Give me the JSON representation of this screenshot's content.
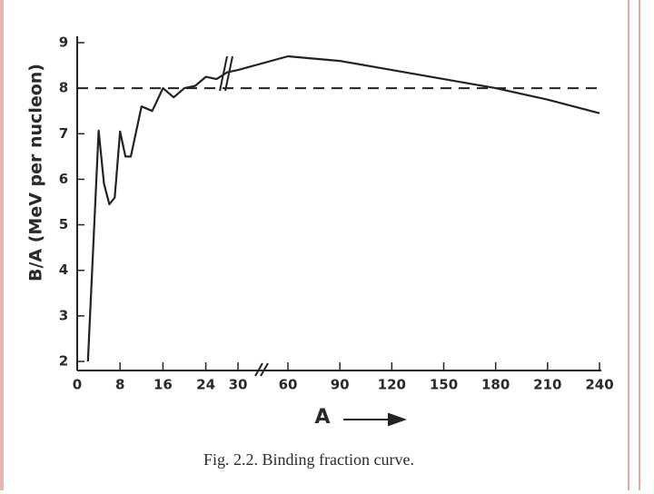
{
  "chart_data": {
    "type": "line",
    "caption": "Fig. 2.2. Binding fraction curve.",
    "x_label": "A",
    "y_label": "B/A (MeV per nucleon)",
    "x": [
      2,
      4,
      5,
      6,
      7,
      8,
      9,
      10,
      12,
      14,
      16,
      18,
      20,
      22,
      24,
      26,
      28,
      30,
      60,
      90,
      120,
      150,
      180,
      210,
      240
    ],
    "series": [
      {
        "color": "#222222",
        "values": [
          2.0,
          7.07,
          5.9,
          5.45,
          5.6,
          7.05,
          6.5,
          6.5,
          7.6,
          7.5,
          8.0,
          7.8,
          8.0,
          8.05,
          8.25,
          8.2,
          8.35,
          8.4,
          8.7,
          8.6,
          8.4,
          8.2,
          8.0,
          7.75,
          7.45
        ]
      }
    ],
    "xlim": [
      0,
      240
    ],
    "xbreak": [
      30,
      60
    ],
    "xticks": [
      0,
      8,
      16,
      24,
      30,
      60,
      90,
      120,
      150,
      180,
      210,
      240
    ],
    "ylim": [
      2,
      9
    ],
    "yticks": [
      2,
      3,
      4,
      5,
      6,
      7,
      8,
      9
    ],
    "hline": 8
  }
}
